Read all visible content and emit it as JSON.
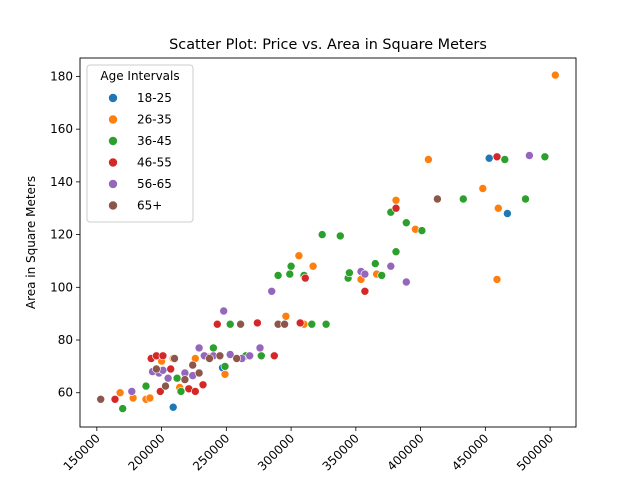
{
  "chart_data": {
    "type": "scatter",
    "title": "Scatter Plot: Price vs. Area in Square Meters",
    "xlabel": "",
    "ylabel": "Area in Square Meters",
    "xlim": [
      137000,
      520000
    ],
    "ylim": [
      47,
      187
    ],
    "xticks": [
      150000,
      200000,
      250000,
      300000,
      350000,
      400000,
      450000,
      500000
    ],
    "xtick_labels": [
      "150000",
      "200000",
      "250000",
      "300000",
      "350000",
      "400000",
      "450000",
      "500000"
    ],
    "yticks": [
      60,
      80,
      100,
      120,
      140,
      160,
      180
    ],
    "ytick_labels": [
      "60",
      "80",
      "100",
      "120",
      "140",
      "160",
      "180"
    ],
    "grid": false,
    "legend": {
      "title": "Age Intervals",
      "placement": "top-left"
    },
    "series": [
      {
        "name": "18-25",
        "color": "#1f77b4",
        "x": [
          209000,
          247000,
          453000,
          467000
        ],
        "y": [
          54.5,
          69.5,
          149,
          128
        ]
      },
      {
        "name": "26-35",
        "color": "#ff7f0e",
        "x": [
          168000,
          178000,
          188000,
          191000,
          200000,
          209000,
          214000,
          226000,
          236000,
          249000,
          296000,
          306000,
          317000,
          310000,
          354000,
          366000,
          381000,
          396000,
          406000,
          448000,
          460000,
          459000,
          504000
        ],
        "y": [
          60,
          58,
          57.5,
          58,
          72,
          73,
          62,
          73,
          73.5,
          67,
          89,
          112,
          108,
          86,
          103,
          105,
          133,
          122,
          148.5,
          137.5,
          130,
          103,
          180.5
        ],
        "_note": ""
      },
      {
        "name": "36-45",
        "color": "#2ca02c",
        "x": [
          170000,
          188000,
          212000,
          215000,
          240000,
          249000,
          253000,
          265000,
          277000,
          290000,
          299000,
          300000,
          310000,
          316000,
          324000,
          327000,
          338000,
          344000,
          345000,
          365000,
          370000,
          377000,
          381000,
          389000,
          401000,
          433000,
          465000,
          481000,
          496000
        ],
        "y": [
          54,
          62.5,
          65.5,
          60.5,
          77,
          70,
          86,
          74,
          74,
          104.5,
          105,
          108,
          104.5,
          86,
          120,
          86,
          119.5,
          103.5,
          105.5,
          109,
          104.5,
          128.5,
          113.5,
          124.5,
          121.5,
          133.5,
          148.5,
          133.5,
          149.5
        ]
      },
      {
        "name": "46-55",
        "color": "#d62728",
        "x": [
          164000,
          192000,
          196000,
          199000,
          201000,
          207000,
          221000,
          226000,
          232000,
          243000,
          274000,
          287000,
          307000,
          311000,
          357000,
          381000,
          459000
        ],
        "y": [
          57.5,
          73,
          74,
          60.5,
          74,
          69,
          61.5,
          60.5,
          63,
          86,
          86.5,
          74,
          86.5,
          103.5,
          98.5,
          130,
          149.5
        ]
      },
      {
        "name": "56-65",
        "color": "#9467bd",
        "x": [
          177000,
          193000,
          198000,
          201000,
          205000,
          218000,
          224000,
          229000,
          233000,
          240000,
          248000,
          253000,
          262000,
          268000,
          276000,
          285000,
          354000,
          357000,
          377000,
          389000,
          484000
        ],
        "y": [
          60.5,
          68,
          67.5,
          68.5,
          65.5,
          67.5,
          66.5,
          77,
          74,
          74,
          91,
          74.5,
          73,
          74,
          77,
          98.5,
          106,
          105,
          108,
          102,
          150
        ]
      },
      {
        "name": "65+",
        "color": "#8c564b",
        "x": [
          153000,
          196000,
          203000,
          210000,
          218000,
          224000,
          229000,
          237000,
          245000,
          258000,
          261000,
          290000,
          295000,
          413000
        ],
        "y": [
          57.5,
          69,
          62.5,
          73,
          65,
          70.5,
          67.5,
          73,
          74,
          73,
          86,
          86,
          86,
          133.5
        ]
      }
    ]
  }
}
